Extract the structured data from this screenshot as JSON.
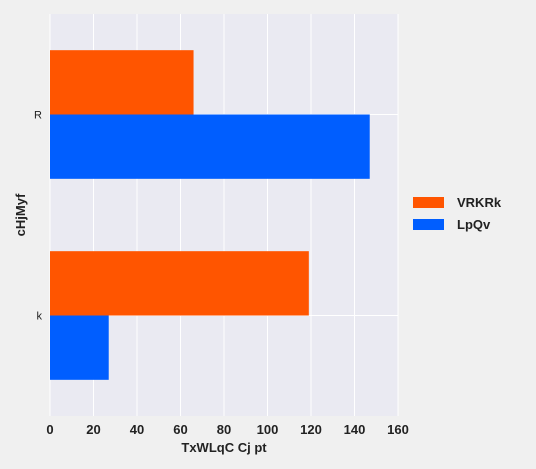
{
  "chart_data": {
    "type": "bar",
    "orientation": "horizontal",
    "categories": [
      "R",
      "k"
    ],
    "series": [
      {
        "name": "VRKRk",
        "values": [
          66,
          119
        ],
        "color": "#ff5500"
      },
      {
        "name": "LpQv",
        "values": [
          147,
          27
        ],
        "color": "#005eff"
      }
    ],
    "xlabel": "TxWLqC   Cj pt",
    "ylabel": "cHjMyf",
    "xlim": [
      0,
      160
    ],
    "xticks": [
      0,
      20,
      40,
      60,
      80,
      100,
      120,
      140,
      160
    ],
    "grid": true,
    "legend_position": "right",
    "plot_background": "#eaeaf2",
    "grid_color": "#ffffff"
  }
}
